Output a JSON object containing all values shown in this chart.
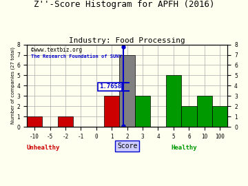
{
  "title": "Z''-Score Histogram for APFH (2016)",
  "subtitle": "Industry: Food Processing",
  "xlabel": "Score",
  "ylabel": "Number of companies (27 total)",
  "watermark1": "©www.textbiz.org",
  "watermark2": "The Research Foundation of SUNY",
  "score_label": "1.7658",
  "score_value": 1.7658,
  "bin_labels": [
    "-10",
    "-5",
    "-2",
    "-1",
    "0",
    "1",
    "2",
    "3",
    "4",
    "5",
    "6",
    "10",
    "100"
  ],
  "bar_heights": [
    1,
    0,
    1,
    0,
    0,
    3,
    7,
    3,
    0,
    5,
    2,
    3,
    2
  ],
  "bar_colors": [
    "#cc0000",
    "#cc0000",
    "#cc0000",
    "#cc0000",
    "#cc0000",
    "#cc0000",
    "#808080",
    "#009900",
    "#009900",
    "#009900",
    "#009900",
    "#009900",
    "#009900"
  ],
  "unhealthy_label": "Unhealthy",
  "healthy_label": "Healthy",
  "unhealthy_color": "#cc0000",
  "healthy_color": "#009900",
  "score_line_color": "#0000cc",
  "ylim": [
    0,
    8
  ],
  "yticks": [
    0,
    1,
    2,
    3,
    4,
    5,
    6,
    7,
    8
  ],
  "bg_color": "#fffff0",
  "grid_color": "#aaaaaa",
  "title_fontsize": 9,
  "subtitle_fontsize": 8
}
